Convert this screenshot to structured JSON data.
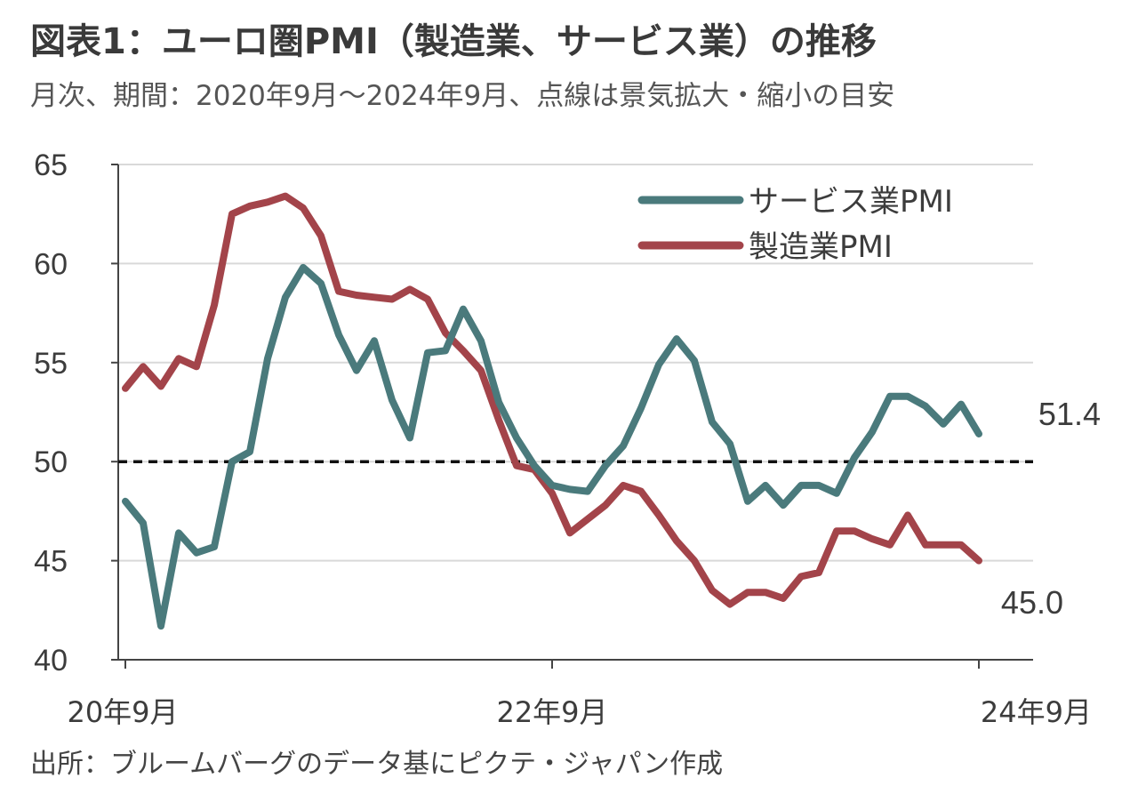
{
  "header": {
    "title": "図表1：ユーロ圏PMI（製造業、サービス業）の推移",
    "subtitle": "月次、期間：2020年9月～2024年9月、点線は景気拡大・縮小の目安"
  },
  "footer": {
    "source": "出所：ブルームバーグのデータ基にピクテ・ジャパン作成"
  },
  "colors": {
    "services": "#4a7a7c",
    "manufacturing": "#a3444a",
    "grid": "#d9d9d9",
    "axis": "#444444",
    "threshold": "#111111"
  },
  "chart_data": {
    "type": "line",
    "x_tick_labels": [
      "20年9月",
      "22年9月",
      "24年9月"
    ],
    "x_tick_index": [
      0,
      24,
      48
    ],
    "ylim": [
      40,
      65
    ],
    "yticks": [
      40,
      45,
      50,
      55,
      60,
      65
    ],
    "grid": true,
    "threshold": 50,
    "threshold_style": "dashed",
    "legend_position": "top-right",
    "series": [
      {
        "name": "サービス業PMI",
        "color_key": "services",
        "end_label": "51.4",
        "values": [
          48.0,
          46.9,
          41.7,
          46.4,
          45.4,
          45.7,
          50.0,
          50.5,
          55.2,
          58.3,
          59.8,
          59.0,
          56.4,
          54.6,
          56.1,
          53.1,
          51.2,
          55.5,
          55.6,
          57.7,
          56.1,
          53.0,
          51.2,
          49.8,
          48.8,
          48.6,
          48.5,
          49.8,
          50.8,
          52.7,
          54.9,
          56.2,
          55.1,
          52.0,
          50.9,
          48.0,
          48.8,
          47.8,
          48.8,
          48.8,
          48.4,
          50.2,
          51.5,
          53.3,
          53.3,
          52.8,
          51.9,
          52.9,
          51.4
        ]
      },
      {
        "name": "製造業PMI",
        "color_key": "manufacturing",
        "end_label": "45.0",
        "values": [
          53.7,
          54.8,
          53.8,
          55.2,
          54.8,
          57.9,
          62.5,
          62.9,
          63.1,
          63.4,
          62.8,
          61.4,
          58.6,
          58.4,
          58.3,
          58.2,
          58.7,
          58.2,
          56.5,
          55.6,
          54.6,
          52.1,
          49.8,
          49.6,
          48.4,
          46.4,
          47.1,
          47.8,
          48.8,
          48.5,
          47.3,
          46.0,
          45.0,
          43.5,
          42.8,
          43.4,
          43.4,
          43.1,
          44.2,
          44.4,
          46.5,
          46.5,
          46.1,
          45.8,
          47.3,
          45.8,
          45.8,
          45.8,
          45.0
        ]
      }
    ]
  }
}
